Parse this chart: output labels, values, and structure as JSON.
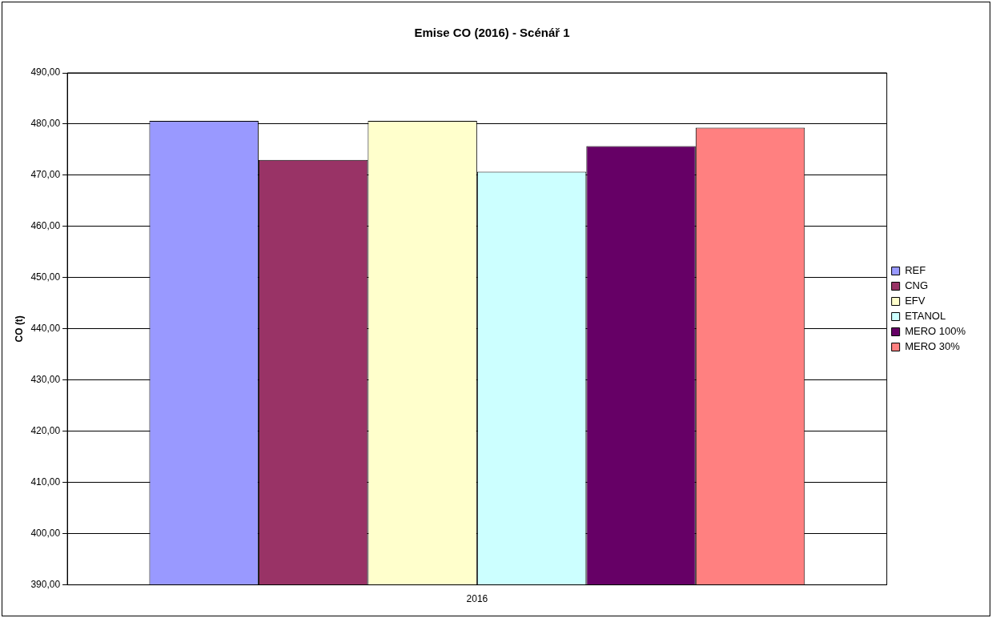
{
  "chart_data": {
    "type": "bar",
    "title": "Emise CO (2016) - Scénář 1",
    "ylabel": "CO (t)",
    "categories": [
      "2016"
    ],
    "series": [
      {
        "name": "REF",
        "color": "#9999ff",
        "values": [
          480.6
        ]
      },
      {
        "name": "CNG",
        "color": "#993366",
        "values": [
          473.0
        ]
      },
      {
        "name": "EFV",
        "color": "#ffffcc",
        "values": [
          480.6
        ]
      },
      {
        "name": "ETANOL",
        "color": "#ccffff",
        "values": [
          470.7
        ]
      },
      {
        "name": "MERO 100%",
        "color": "#660066",
        "values": [
          475.7
        ]
      },
      {
        "name": "MERO 30%",
        "color": "#ff8080",
        "values": [
          479.3
        ]
      }
    ],
    "ylim": [
      390,
      490
    ],
    "yticks": [
      {
        "value": 390,
        "label": "390,00"
      },
      {
        "value": 400,
        "label": "400,00"
      },
      {
        "value": 410,
        "label": "410,00"
      },
      {
        "value": 420,
        "label": "420,00"
      },
      {
        "value": 430,
        "label": "430,00"
      },
      {
        "value": 440,
        "label": "440,00"
      },
      {
        "value": 450,
        "label": "450,00"
      },
      {
        "value": 460,
        "label": "460,00"
      },
      {
        "value": 470,
        "label": "470,00"
      },
      {
        "value": 480,
        "label": "480,00"
      },
      {
        "value": 490,
        "label": "490,00"
      }
    ],
    "grid": "y",
    "legend": "right"
  }
}
